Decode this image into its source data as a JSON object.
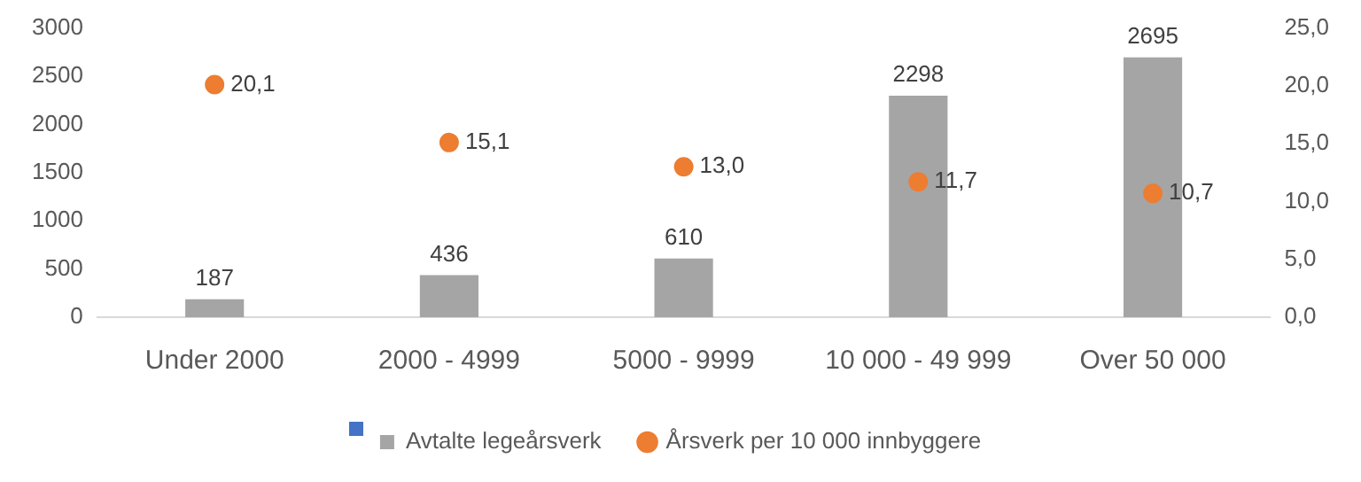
{
  "chart_data": {
    "type": "bar",
    "categories": [
      "Under 2000",
      "2000 - 4999",
      "5000 - 9999",
      "10 000 - 49 999",
      "Over 50 000"
    ],
    "series": [
      {
        "name": "Avtalte legeårsverk",
        "color": "#a5a5a5",
        "values": [
          187,
          436,
          610,
          2298,
          2695
        ],
        "value_labels": [
          "187",
          "436",
          "610",
          "2298",
          "2695"
        ]
      },
      {
        "name": "Årsverk per 10 000 innbyggere",
        "type": "scatter",
        "axis": "y2",
        "color": "#ed7d31",
        "values": [
          20.1,
          15.1,
          13.0,
          11.7,
          10.7
        ],
        "value_labels": [
          "20,1",
          "15,1",
          "13,0",
          "11,7",
          "10,7"
        ]
      }
    ],
    "ylim": [
      0,
      3000
    ],
    "yticks": [
      0,
      500,
      1000,
      1500,
      2000,
      2500,
      3000
    ],
    "y2lim": [
      0,
      25
    ],
    "y2ticks": [
      {
        "value": 0,
        "label": "0,0"
      },
      {
        "value": 5,
        "label": "5,0"
      },
      {
        "value": 10,
        "label": "10,0"
      },
      {
        "value": 15,
        "label": "15,0"
      },
      {
        "value": 20,
        "label": "20,0"
      },
      {
        "value": 25,
        "label": "25,0"
      }
    ],
    "legend": "bottom",
    "marker": "circle"
  }
}
